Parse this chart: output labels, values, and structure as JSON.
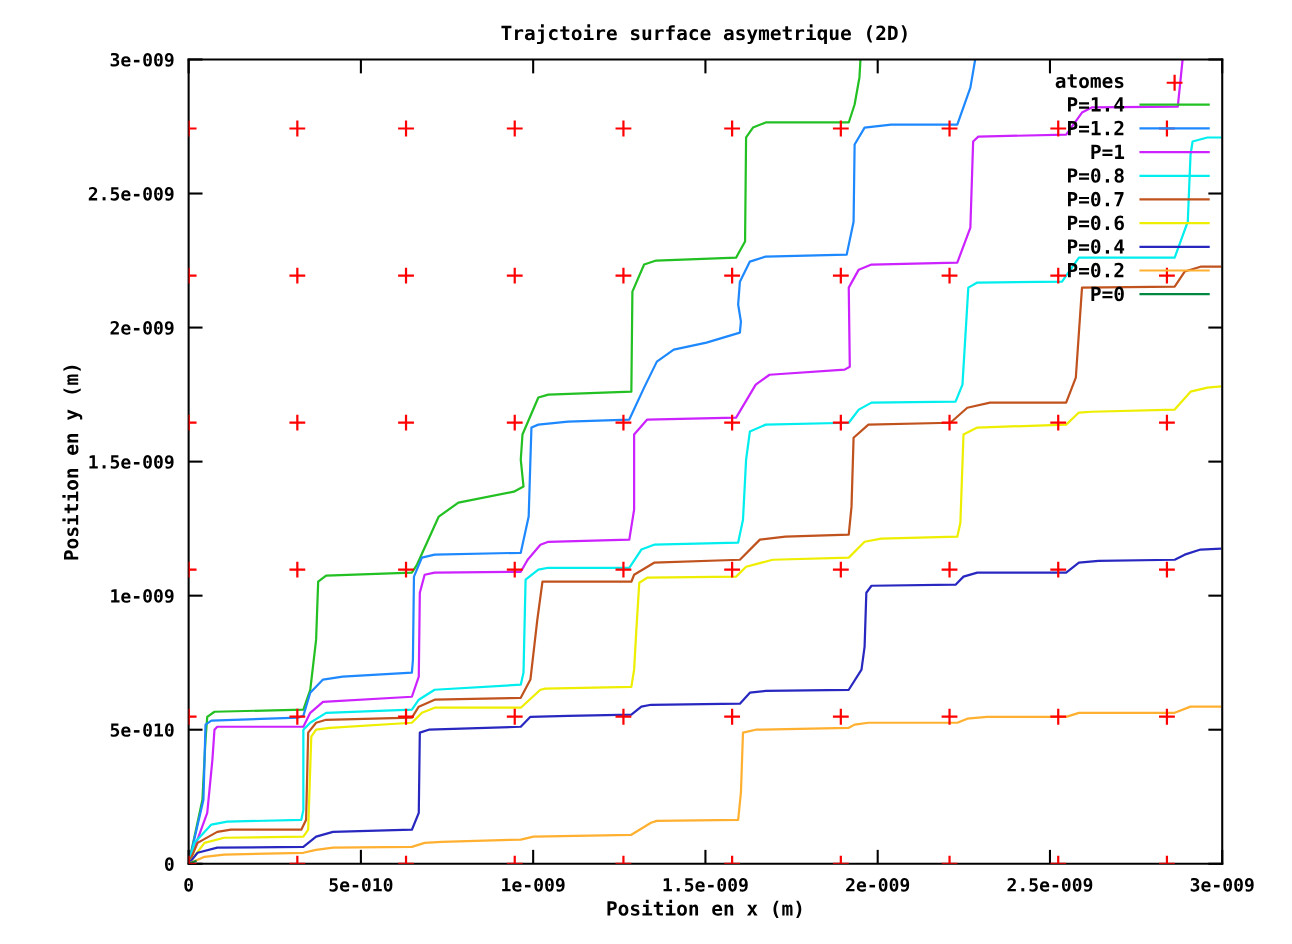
{
  "chart_data": {
    "type": "line",
    "title": "Trajctoire surface asymetrique (2D)",
    "xlabel": "Position en x (m)",
    "ylabel": "Position en y (m)",
    "xlim": [
      0,
      3e-09
    ],
    "ylim": [
      0,
      3e-09
    ],
    "xticks": [
      0,
      {
        "value": 5e-10,
        "label": "5e-010"
      },
      {
        "value": 1e-09,
        "label": "1e-009"
      },
      {
        "value": 1.5e-09,
        "label": "1.5e-009"
      },
      {
        "value": 2e-09,
        "label": "2e-009"
      },
      {
        "value": 2.5e-09,
        "label": "2.5e-009"
      },
      {
        "value": 3e-09,
        "label": "3e-009"
      }
    ],
    "yticks": [
      0,
      {
        "value": 5e-10,
        "label": "5e-010"
      },
      {
        "value": 1e-09,
        "label": "1e-009"
      },
      {
        "value": 1.5e-09,
        "label": "1.5e-009"
      },
      {
        "value": 2e-09,
        "label": "2e-009"
      },
      {
        "value": 2.5e-09,
        "label": "2.5e-009"
      },
      {
        "value": 3e-09,
        "label": "3e-009"
      }
    ],
    "grid": false,
    "legend": "top right",
    "series": [
      {
        "name": "atomes",
        "type": "scatter",
        "marker": "cross",
        "color": "#ff0000",
        "x": [
          0,
          3.155e-10,
          6.31e-10,
          9.465e-10,
          1.262e-09,
          1.5775e-09,
          1.893e-09,
          2.2085e-09,
          2.524e-09,
          2.8395e-09,
          0,
          3.155e-10,
          6.31e-10,
          9.465e-10,
          1.262e-09,
          1.5775e-09,
          1.893e-09,
          2.2085e-09,
          2.524e-09,
          2.8395e-09,
          0,
          3.155e-10,
          6.31e-10,
          9.465e-10,
          1.262e-09,
          1.5775e-09,
          1.893e-09,
          2.2085e-09,
          2.524e-09,
          2.8395e-09,
          0,
          3.155e-10,
          6.31e-10,
          9.465e-10,
          1.262e-09,
          1.5775e-09,
          1.893e-09,
          2.2085e-09,
          2.524e-09,
          2.8395e-09,
          0,
          3.155e-10,
          6.31e-10,
          9.465e-10,
          1.262e-09,
          1.5775e-09,
          1.893e-09,
          2.2085e-09,
          2.524e-09,
          2.8395e-09,
          0,
          3.155e-10,
          6.31e-10,
          9.465e-10,
          1.262e-09,
          1.5775e-09,
          1.893e-09,
          2.2085e-09,
          2.524e-09,
          2.8395e-09
        ],
        "values": [
          0,
          0,
          0,
          0,
          0,
          0,
          0,
          0,
          0,
          0,
          5.485e-10,
          5.485e-10,
          5.485e-10,
          5.485e-10,
          5.485e-10,
          5.485e-10,
          5.485e-10,
          5.485e-10,
          5.485e-10,
          5.485e-10,
          1.097e-09,
          1.097e-09,
          1.097e-09,
          1.097e-09,
          1.097e-09,
          1.097e-09,
          1.097e-09,
          1.097e-09,
          1.097e-09,
          1.097e-09,
          1.6455e-09,
          1.6455e-09,
          1.6455e-09,
          1.6455e-09,
          1.6455e-09,
          1.6455e-09,
          1.6455e-09,
          1.6455e-09,
          1.6455e-09,
          1.6455e-09,
          2.194e-09,
          2.194e-09,
          2.194e-09,
          2.194e-09,
          2.194e-09,
          2.194e-09,
          2.194e-09,
          2.194e-09,
          2.194e-09,
          2.194e-09,
          2.7425e-09,
          2.7425e-09,
          2.7425e-09,
          2.7425e-09,
          2.7425e-09,
          2.7425e-09,
          2.7425e-09,
          2.7425e-09,
          2.7425e-09,
          2.7425e-09
        ]
      },
      {
        "name": "P=1.4",
        "color": "#22c022",
        "x": [
          0,
          4e-11,
          4.9e-11,
          5.4e-11,
          7.5e-11,
          3.33e-10,
          3.53e-10,
          3.7e-10,
          3.76e-10,
          3.99e-10,
          6.48e-10,
          6.63e-10,
          7.26e-10,
          7.83e-10,
          9.44e-10,
          9.72e-10,
          9.64e-10,
          9.69e-10,
          1.015e-09,
          1.044e-09,
          1.285e-09,
          1.288e-09,
          1.322e-09,
          1.357e-09,
          1.589e-09,
          1.615e-09,
          1.618e-09,
          1.638e-09,
          1.675e-09,
          1.916e-09,
          1.933e-09,
          1.947e-09,
          1.95e-09
        ],
        "values": [
          0,
          2.39e-10,
          4.63e-10,
          5.48e-10,
          5.67e-10,
          5.75e-10,
          6.49e-10,
          8.36e-10,
          1.052e-09,
          1.075e-09,
          1.086e-09,
          1.116e-09,
          1.295e-09,
          1.347e-09,
          1.388e-09,
          1.407e-09,
          1.507e-09,
          1.601e-09,
          1.739e-09,
          1.75e-09,
          1.761e-09,
          2.134e-09,
          2.235e-09,
          2.25e-09,
          2.261e-09,
          2.321e-09,
          2.709e-09,
          2.746e-09,
          2.765e-09,
          2.765e-09,
          2.832e-09,
          2.933e-09,
          3e-09
        ]
      },
      {
        "name": "P=1.2",
        "color": "#1e88ff",
        "x": [
          0,
          4.3e-11,
          4.9e-11,
          6.6e-11,
          3.18e-10,
          3.33e-10,
          3.53e-10,
          3.9e-10,
          4.47e-10,
          6.48e-10,
          6.51e-10,
          6.54e-10,
          6.77e-10,
          7.14e-10,
          9.64e-10,
          9.87e-10,
          9.92e-10,
          9.95e-10,
          1.015e-09,
          1.101e-09,
          1.279e-09,
          1.322e-09,
          1.359e-09,
          1.408e-09,
          1.503e-09,
          1.6e-09,
          1.603e-09,
          1.595e-09,
          1.6e-09,
          1.629e-09,
          1.675e-09,
          1.91e-09,
          1.93e-09,
          1.933e-09,
          1.962e-09,
          2.039e-09,
          2.231e-09,
          2.269e-09,
          2.283e-09
        ],
        "values": [
          0,
          2.39e-10,
          5.19e-10,
          5.34e-10,
          5.45e-10,
          5.52e-10,
          6.38e-10,
          6.87e-10,
          6.98e-10,
          7.13e-10,
          7.61e-10,
          1.071e-09,
          1.142e-09,
          1.153e-09,
          1.16e-09,
          1.295e-09,
          1.507e-09,
          1.627e-09,
          1.638e-09,
          1.649e-09,
          1.657e-09,
          1.776e-09,
          1.873e-09,
          1.918e-09,
          1.944e-09,
          1.981e-09,
          2.022e-09,
          2.086e-09,
          2.171e-09,
          2.246e-09,
          2.265e-09,
          2.272e-09,
          2.395e-09,
          2.683e-09,
          2.746e-09,
          2.757e-09,
          2.757e-09,
          2.895e-09,
          3e-09
        ]
      },
      {
        "name": "P=1",
        "color": "#cc22ff",
        "x": [
          0,
          5.4e-11,
          6.9e-11,
          7.5e-11,
          8.3e-11,
          3.33e-10,
          3.53e-10,
          3.9e-10,
          6.48e-10,
          6.68e-10,
          6.71e-10,
          6.85e-10,
          7.14e-10,
          9.64e-10,
          9.84e-10,
          1.021e-09,
          1.044e-09,
          1.279e-09,
          1.293e-09,
          1.293e-09,
          1.331e-09,
          1.589e-09,
          1.646e-09,
          1.686e-09,
          1.904e-09,
          1.919e-09,
          1.916e-09,
          1.945e-09,
          1.982e-09,
          2.231e-09,
          2.269e-09,
          2.277e-09,
          2.292e-09,
          2.547e-09,
          2.593e-09,
          2.621e-09,
          2.871e-09,
          2.879e-09,
          2.885e-09
        ],
        "values": [
          0,
          1.9e-10,
          3.88e-10,
          5e-10,
          5.11e-10,
          5.11e-10,
          5.63e-10,
          6.04e-10,
          6.23e-10,
          6.98e-10,
          1.011e-09,
          1.078e-09,
          1.086e-09,
          1.089e-09,
          1.134e-09,
          1.19e-09,
          1.201e-09,
          1.209e-09,
          1.321e-09,
          1.601e-09,
          1.657e-09,
          1.664e-09,
          1.787e-09,
          1.824e-09,
          1.843e-09,
          1.854e-09,
          2.149e-09,
          2.216e-09,
          2.235e-09,
          2.242e-09,
          2.373e-09,
          2.694e-09,
          2.712e-09,
          2.72e-09,
          2.802e-09,
          2.821e-09,
          2.824e-09,
          2.925e-09,
          3e-09
        ]
      },
      {
        "name": "P=0.8",
        "color": "#00eeee",
        "x": [
          0,
          1.7e-11,
          6.6e-11,
          1.12e-10,
          3.27e-10,
          3.33e-10,
          3.33e-10,
          3.53e-10,
          3.99e-10,
          6.48e-10,
          6.68e-10,
          7.14e-10,
          9.64e-10,
          9.72e-10,
          9.78e-10,
          1.015e-09,
          1.044e-09,
          1.279e-09,
          1.314e-09,
          1.351e-09,
          1.595e-09,
          1.609e-09,
          1.618e-09,
          1.629e-09,
          1.675e-09,
          1.916e-09,
          1.945e-09,
          1.982e-09,
          2.226e-09,
          2.246e-09,
          2.263e-09,
          2.289e-09,
          2.535e-09,
          2.584e-09,
          2.862e-09,
          2.9e-09,
          2.908e-09,
          2.914e-09,
          2.957e-09,
          2.994e-09
        ],
        "values": [
          0,
          7.8e-11,
          1.46e-10,
          1.57e-10,
          1.64e-10,
          2.01e-10,
          5e-10,
          5.26e-10,
          5.63e-10,
          5.75e-10,
          6.12e-10,
          6.49e-10,
          6.68e-10,
          7.13e-10,
          1.06e-09,
          1.097e-09,
          1.104e-09,
          1.104e-09,
          1.172e-09,
          1.19e-09,
          1.198e-09,
          1.283e-09,
          1.507e-09,
          1.612e-09,
          1.638e-09,
          1.645e-09,
          1.694e-09,
          1.72e-09,
          1.724e-09,
          1.787e-09,
          2.149e-09,
          2.168e-09,
          2.171e-09,
          2.261e-09,
          2.261e-09,
          2.395e-09,
          2.645e-09,
          2.694e-09,
          2.709e-09,
          2.709e-09
        ]
      },
      {
        "name": "P=0.7",
        "color": "#c0521e",
        "x": [
          0,
          2.6e-11,
          8.3e-11,
          1.23e-10,
          3.27e-10,
          3.41e-10,
          3.47e-10,
          3.7e-10,
          3.99e-10,
          6.48e-10,
          6.68e-10,
          7.14e-10,
          9.64e-10,
          9.92e-10,
          1.012e-09,
          1.027e-09,
          1.285e-09,
          1.293e-09,
          1.351e-09,
          1.6e-09,
          1.658e-09,
          1.732e-09,
          1.916e-09,
          1.924e-09,
          1.93e-09,
          1.973e-09,
          2.211e-09,
          2.26e-09,
          2.326e-09,
          2.547e-09,
          2.575e-09,
          2.593e-09,
          2.862e-09,
          2.891e-09,
          2.937e-09,
          2.994e-09
        ],
        "values": [
          0,
          7.8e-11,
          1.19e-10,
          1.27e-10,
          1.27e-10,
          1.64e-10,
          4.89e-10,
          5.26e-10,
          5.37e-10,
          5.45e-10,
          5.86e-10,
          6.12e-10,
          6.19e-10,
          6.87e-10,
          9.1e-10,
          1.052e-09,
          1.052e-09,
          1.078e-09,
          1.123e-09,
          1.134e-09,
          1.209e-09,
          1.22e-09,
          1.228e-09,
          1.332e-09,
          1.589e-09,
          1.638e-09,
          1.645e-09,
          1.701e-09,
          1.72e-09,
          1.72e-09,
          1.813e-09,
          2.149e-09,
          2.153e-09,
          2.209e-09,
          2.227e-09,
          2.227e-09
        ]
      },
      {
        "name": "P=0.6",
        "color": "#eeee00",
        "x": [
          0,
          4.6e-11,
          1.03e-10,
          3.33e-10,
          3.47e-10,
          3.56e-10,
          3.7e-10,
          4.1e-10,
          6.48e-10,
          6.77e-10,
          7.14e-10,
          9.64e-10,
          1.021e-09,
          1.035e-09,
          1.285e-09,
          1.293e-09,
          1.299e-09,
          1.308e-09,
          1.331e-09,
          1.589e-09,
          1.618e-09,
          1.695e-09,
          1.916e-09,
          1.962e-09,
          2.01e-09,
          2.231e-09,
          2.24e-09,
          2.249e-09,
          2.289e-09,
          2.547e-09,
          2.584e-09,
          2.621e-09,
          2.862e-09,
          2.908e-09,
          2.957e-09,
          2.994e-09
        ],
        "values": [
          0,
          7.8e-11,
          9.7e-11,
          1.01e-10,
          1.27e-10,
          4.74e-10,
          5e-10,
          5.07e-10,
          5.26e-10,
          5.63e-10,
          5.82e-10,
          5.82e-10,
          6.49e-10,
          6.53e-10,
          6.6e-10,
          7.24e-10,
          8.62e-10,
          1.048e-09,
          1.067e-09,
          1.071e-09,
          1.108e-09,
          1.134e-09,
          1.142e-09,
          1.201e-09,
          1.213e-09,
          1.22e-09,
          1.272e-09,
          1.601e-09,
          1.627e-09,
          1.638e-09,
          1.683e-09,
          1.686e-09,
          1.694e-09,
          1.761e-09,
          1.776e-09,
          1.78e-09
        ]
      },
      {
        "name": "P=0.4",
        "color": "#2828c0",
        "x": [
          0,
          2.6e-11,
          8.3e-11,
          3.33e-10,
          3.7e-10,
          4.19e-10,
          6.48e-10,
          6.68e-10,
          6.71e-10,
          6.97e-10,
          9.64e-10,
          9.92e-10,
          1.101e-09,
          1.285e-09,
          1.314e-09,
          1.342e-09,
          1.6e-09,
          1.629e-09,
          1.675e-09,
          1.916e-09,
          1.953e-09,
          1.962e-09,
          1.967e-09,
          1.982e-09,
          2.226e-09,
          2.249e-09,
          2.289e-09,
          2.547e-09,
          2.584e-09,
          2.641e-09,
          2.862e-09,
          2.891e-09,
          2.937e-09,
          2.994e-09
        ],
        "values": [
          0,
          4.1e-11,
          6e-11,
          6.3e-11,
          1.01e-10,
          1.19e-10,
          1.27e-10,
          1.9e-10,
          4.89e-10,
          5e-10,
          5.11e-10,
          5.48e-10,
          5.52e-10,
          5.56e-10,
          5.86e-10,
          5.93e-10,
          5.97e-10,
          6.38e-10,
          6.45e-10,
          6.49e-10,
          7.24e-10,
          8.1e-10,
          1.011e-09,
          1.037e-09,
          1.041e-09,
          1.071e-09,
          1.086e-09,
          1.086e-09,
          1.123e-09,
          1.13e-09,
          1.134e-09,
          1.153e-09,
          1.172e-09,
          1.175e-09
        ]
      },
      {
        "name": "P=0.2",
        "color": "#ffb030",
        "x": [
          0,
          4.6e-11,
          1.03e-10,
          3.33e-10,
          3.7e-10,
          4.19e-10,
          6.48e-10,
          6.85e-10,
          7.34e-10,
          9.64e-10,
          1.001e-09,
          1.285e-09,
          1.342e-09,
          1.359e-09,
          1.595e-09,
          1.603e-09,
          1.609e-09,
          1.646e-09,
          1.916e-09,
          1.933e-09,
          1.973e-09,
          2.231e-09,
          2.26e-09,
          2.317e-09,
          2.547e-09,
          2.584e-09,
          2.862e-09,
          2.908e-09,
          2.994e-09
        ],
        "values": [
          0,
          2.6e-11,
          3.4e-11,
          4.1e-11,
          5.2e-11,
          6e-11,
          6.3e-11,
          7.8e-11,
          8.2e-11,
          9e-11,
          1.01e-10,
          1.08e-10,
          1.53e-10,
          1.6e-10,
          1.64e-10,
          2.65e-10,
          4.89e-10,
          5e-10,
          5.07e-10,
          5.19e-10,
          5.26e-10,
          5.26e-10,
          5.41e-10,
          5.48e-10,
          5.48e-10,
          5.63e-10,
          5.63e-10,
          5.86e-10,
          5.86e-10
        ]
      },
      {
        "name": "P=0",
        "color": "#008840",
        "x": [
          0,
          2e-11
        ],
        "values": [
          0,
          1e-11
        ]
      }
    ]
  }
}
